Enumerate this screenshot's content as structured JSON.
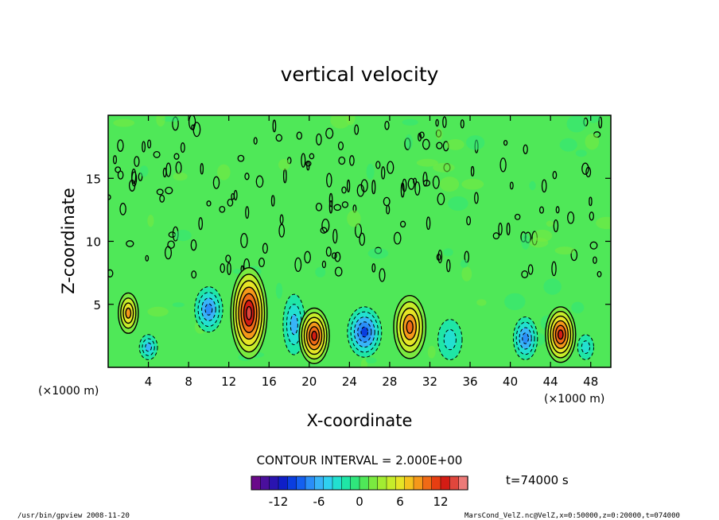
{
  "chart_data": {
    "type": "heatmap",
    "title": "vertical velocity",
    "xlabel": "X-coordinate",
    "ylabel": "Z-coordinate",
    "x_units": "(×1000 m)",
    "y_units": "(×1000 m)",
    "xlim": [
      0,
      50
    ],
    "ylim": [
      0,
      20
    ],
    "x_ticks": [
      4,
      8,
      12,
      16,
      20,
      24,
      28,
      32,
      36,
      40,
      44,
      48
    ],
    "y_ticks": [
      5,
      10,
      15
    ],
    "contour_interval_label": "CONTOUR INTERVAL = 2.000E+00",
    "time_label": "t=74000 s",
    "colorbar": {
      "min": -16,
      "max": 16,
      "ticks": [
        -12,
        -6,
        0,
        6,
        12
      ],
      "colors": [
        "#6a0a8a",
        "#4a0f9c",
        "#2a14b0",
        "#0f1fc8",
        "#0a3ee0",
        "#1460f0",
        "#2a8ef8",
        "#38b4f8",
        "#2fd0f0",
        "#22e0d0",
        "#1fe6a6",
        "#2fe67c",
        "#4fe858",
        "#7aea40",
        "#a2ec32",
        "#c6ec2a",
        "#e6e426",
        "#f5c21e",
        "#f5981a",
        "#f06a16",
        "#e63e12",
        "#d41c14",
        "#e0463c",
        "#ec7a78"
      ]
    },
    "cells": [
      {
        "x": 2,
        "z": 4.3,
        "value": 8,
        "rx": 1.0,
        "rz": 1.6
      },
      {
        "x": 4,
        "z": 1.6,
        "value": -6,
        "rx": 0.9,
        "rz": 1.0
      },
      {
        "x": 10,
        "z": 4.6,
        "value": -8,
        "rx": 1.4,
        "rz": 1.8
      },
      {
        "x": 14,
        "z": 4.3,
        "value": 14,
        "rx": 1.8,
        "rz": 3.6
      },
      {
        "x": 18.5,
        "z": 3.4,
        "value": -6,
        "rx": 1.1,
        "rz": 2.4
      },
      {
        "x": 20.5,
        "z": 2.5,
        "value": 12,
        "rx": 1.5,
        "rz": 2.2
      },
      {
        "x": 25.5,
        "z": 2.8,
        "value": -10,
        "rx": 1.7,
        "rz": 2.0
      },
      {
        "x": 30,
        "z": 3.2,
        "value": 10,
        "rx": 1.6,
        "rz": 2.5
      },
      {
        "x": 34,
        "z": 2.2,
        "value": -4,
        "rx": 1.2,
        "rz": 1.6
      },
      {
        "x": 41.5,
        "z": 2.3,
        "value": -8,
        "rx": 1.2,
        "rz": 1.7
      },
      {
        "x": 45,
        "z": 2.6,
        "value": 12,
        "rx": 1.5,
        "rz": 2.2
      },
      {
        "x": 47.5,
        "z": 1.6,
        "value": -4,
        "rx": 0.8,
        "rz": 1.0
      }
    ]
  },
  "footer": {
    "left": "/usr/bin/gpview   2008-11-20",
    "right": "MarsCond_VelZ.nc@VelZ,x=0:50000,z=0:20000,t=074000"
  }
}
